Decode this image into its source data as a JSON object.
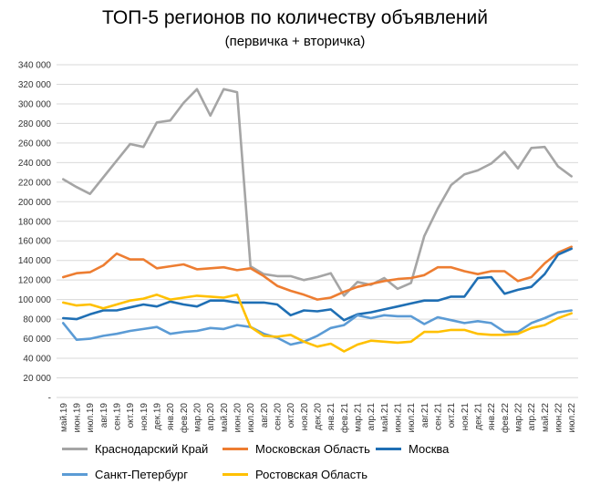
{
  "chart_data": {
    "type": "line",
    "title": "ТОП-5 регионов по количеству объявлений",
    "subtitle": "(первичка + вторичка)",
    "xlabel": "",
    "ylabel": "",
    "ylim": [
      0,
      340000
    ],
    "yticks": [
      0,
      20000,
      40000,
      60000,
      80000,
      100000,
      120000,
      140000,
      160000,
      180000,
      200000,
      220000,
      240000,
      260000,
      280000,
      300000,
      320000,
      340000
    ],
    "ytick_labels": [
      "-",
      "20 000",
      "40 000",
      "60 000",
      "80 000",
      "100 000",
      "120 000",
      "140 000",
      "160 000",
      "180 000",
      "200 000",
      "220 000",
      "240 000",
      "260 000",
      "280 000",
      "300 000",
      "320 000",
      "340 000"
    ],
    "grid": true,
    "legend": "bottom",
    "categories": [
      "май.19",
      "июн.19",
      "июл.19",
      "авг.19",
      "сен.19",
      "окт.19",
      "ноя.19",
      "дек.19",
      "янв.20",
      "фев.20",
      "мар.20",
      "апр.20",
      "май.20",
      "июн.20",
      "июл.20",
      "авг.20",
      "сен.20",
      "окт.20",
      "ноя.20",
      "дек.20",
      "янв.21",
      "фев.21",
      "мар.21",
      "апр.21",
      "май.21",
      "июн.21",
      "июл.21",
      "авг.21",
      "сен.21",
      "окт.21",
      "ноя.21",
      "дек.21",
      "янв.22",
      "фев.22",
      "мар.22",
      "апр.22",
      "май.22",
      "июн.22",
      "июл.22"
    ],
    "series": [
      {
        "name": "Краснодарский Край",
        "color": "#a5a5a5",
        "values": [
          223000,
          215000,
          208000,
          225000,
          242000,
          259000,
          256000,
          281000,
          283000,
          301000,
          315000,
          288000,
          315000,
          312000,
          134000,
          126000,
          124000,
          124000,
          120000,
          123000,
          127000,
          104000,
          118000,
          115000,
          122000,
          111000,
          117000,
          165000,
          193000,
          217000,
          228000,
          232000,
          239000,
          251000,
          234000,
          255000,
          256000,
          236000,
          226000
        ]
      },
      {
        "name": "Московская Область",
        "color": "#ed7d31",
        "values": [
          123000,
          127000,
          128000,
          135000,
          147000,
          141000,
          141000,
          132000,
          134000,
          136000,
          131000,
          132000,
          133000,
          130000,
          132000,
          124000,
          114000,
          109000,
          105000,
          100000,
          102000,
          108000,
          113000,
          116000,
          119000,
          121000,
          122000,
          125000,
          133000,
          133000,
          129000,
          126000,
          129000,
          129000,
          119000,
          123000,
          137000,
          148000,
          154000
        ]
      },
      {
        "name": "Москва",
        "color": "#1f6fb4",
        "values": [
          81000,
          80000,
          85000,
          89000,
          89000,
          92000,
          95000,
          93000,
          98000,
          95000,
          93000,
          99000,
          99000,
          97000,
          97000,
          97000,
          95000,
          84000,
          89000,
          88000,
          90000,
          79000,
          85000,
          87000,
          90000,
          93000,
          96000,
          99000,
          99000,
          103000,
          103000,
          122000,
          123000,
          106000,
          110000,
          113000,
          126000,
          146000,
          152000
        ]
      },
      {
        "name": "Санкт-Петербург",
        "color": "#5b9bd5",
        "values": [
          76000,
          59000,
          60000,
          63000,
          65000,
          68000,
          70000,
          72000,
          65000,
          67000,
          68000,
          71000,
          70000,
          74000,
          72000,
          65000,
          61000,
          54000,
          57000,
          63000,
          71000,
          74000,
          84000,
          81000,
          84000,
          83000,
          83000,
          75000,
          82000,
          79000,
          76000,
          78000,
          76000,
          67000,
          67000,
          76000,
          81000,
          87000,
          89000
        ]
      },
      {
        "name": "Ростовская Область",
        "color": "#ffc000",
        "values": [
          97000,
          94000,
          95000,
          91000,
          95000,
          99000,
          101000,
          105000,
          100000,
          102000,
          104000,
          103000,
          102000,
          105000,
          72000,
          63000,
          62000,
          64000,
          57000,
          52000,
          55000,
          47000,
          54000,
          58000,
          57000,
          56000,
          57000,
          67000,
          67000,
          69000,
          69000,
          65000,
          64000,
          64000,
          65000,
          71000,
          74000,
          81000,
          86000
        ]
      }
    ]
  }
}
